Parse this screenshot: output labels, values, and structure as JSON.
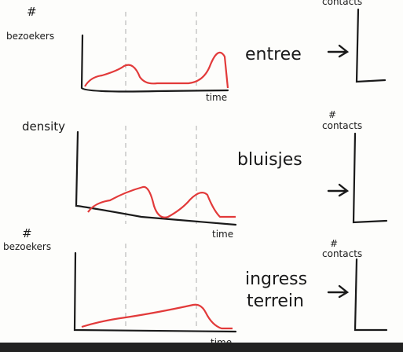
{
  "rows": [
    {
      "y_label": [
        "#",
        "bezoekers"
      ],
      "x_label": "time",
      "name": [
        "entree"
      ],
      "result_label": "contacts"
    },
    {
      "y_label": [
        "density"
      ],
      "x_label": "time",
      "name": [
        "bluisjes"
      ],
      "result_hash": "#",
      "result_label": "contacts"
    },
    {
      "y_label": [
        "#",
        "bezoekers"
      ],
      "x_label": "time",
      "name": [
        "ingress",
        "terrein"
      ],
      "result_hash": "#",
      "result_label": "contacts"
    }
  ]
}
